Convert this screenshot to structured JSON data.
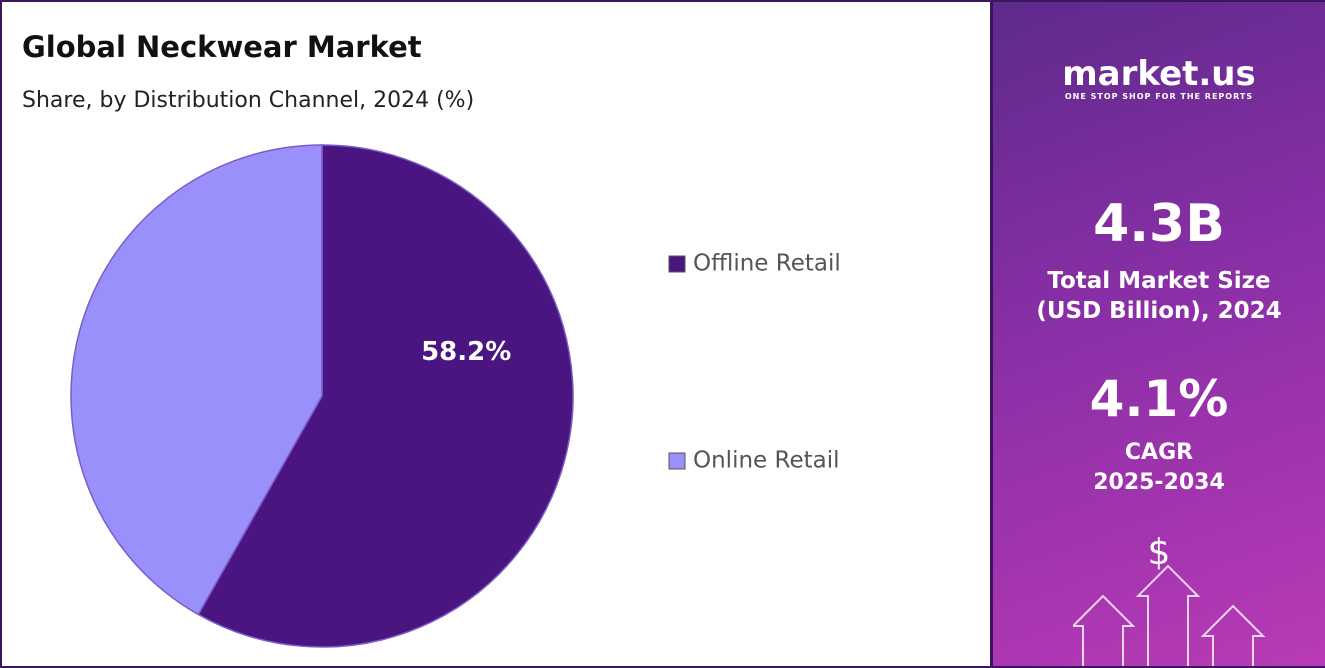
{
  "chart_data": {
    "type": "pie",
    "title": "Global Neckwear Market",
    "subtitle": "Share, by Distribution Channel, 2024 (%)",
    "categories": [
      "Offline Retail",
      "Online Retail"
    ],
    "values": [
      58.2,
      41.8
    ],
    "value_labels": [
      "58.2%",
      null
    ],
    "colors": [
      "#4a1580",
      "#9a90fb"
    ],
    "legend": "right"
  },
  "panel": {
    "logo": "market.us",
    "tagline": "ONE STOP SHOP FOR THE REPORTS",
    "market_size": "4.3B",
    "market_size_label": [
      "Total Market Size",
      "(USD Billion), 2024"
    ],
    "cagr": "4.1%",
    "cagr_label": [
      "CAGR",
      "2025-2034"
    ],
    "icon": "$"
  }
}
